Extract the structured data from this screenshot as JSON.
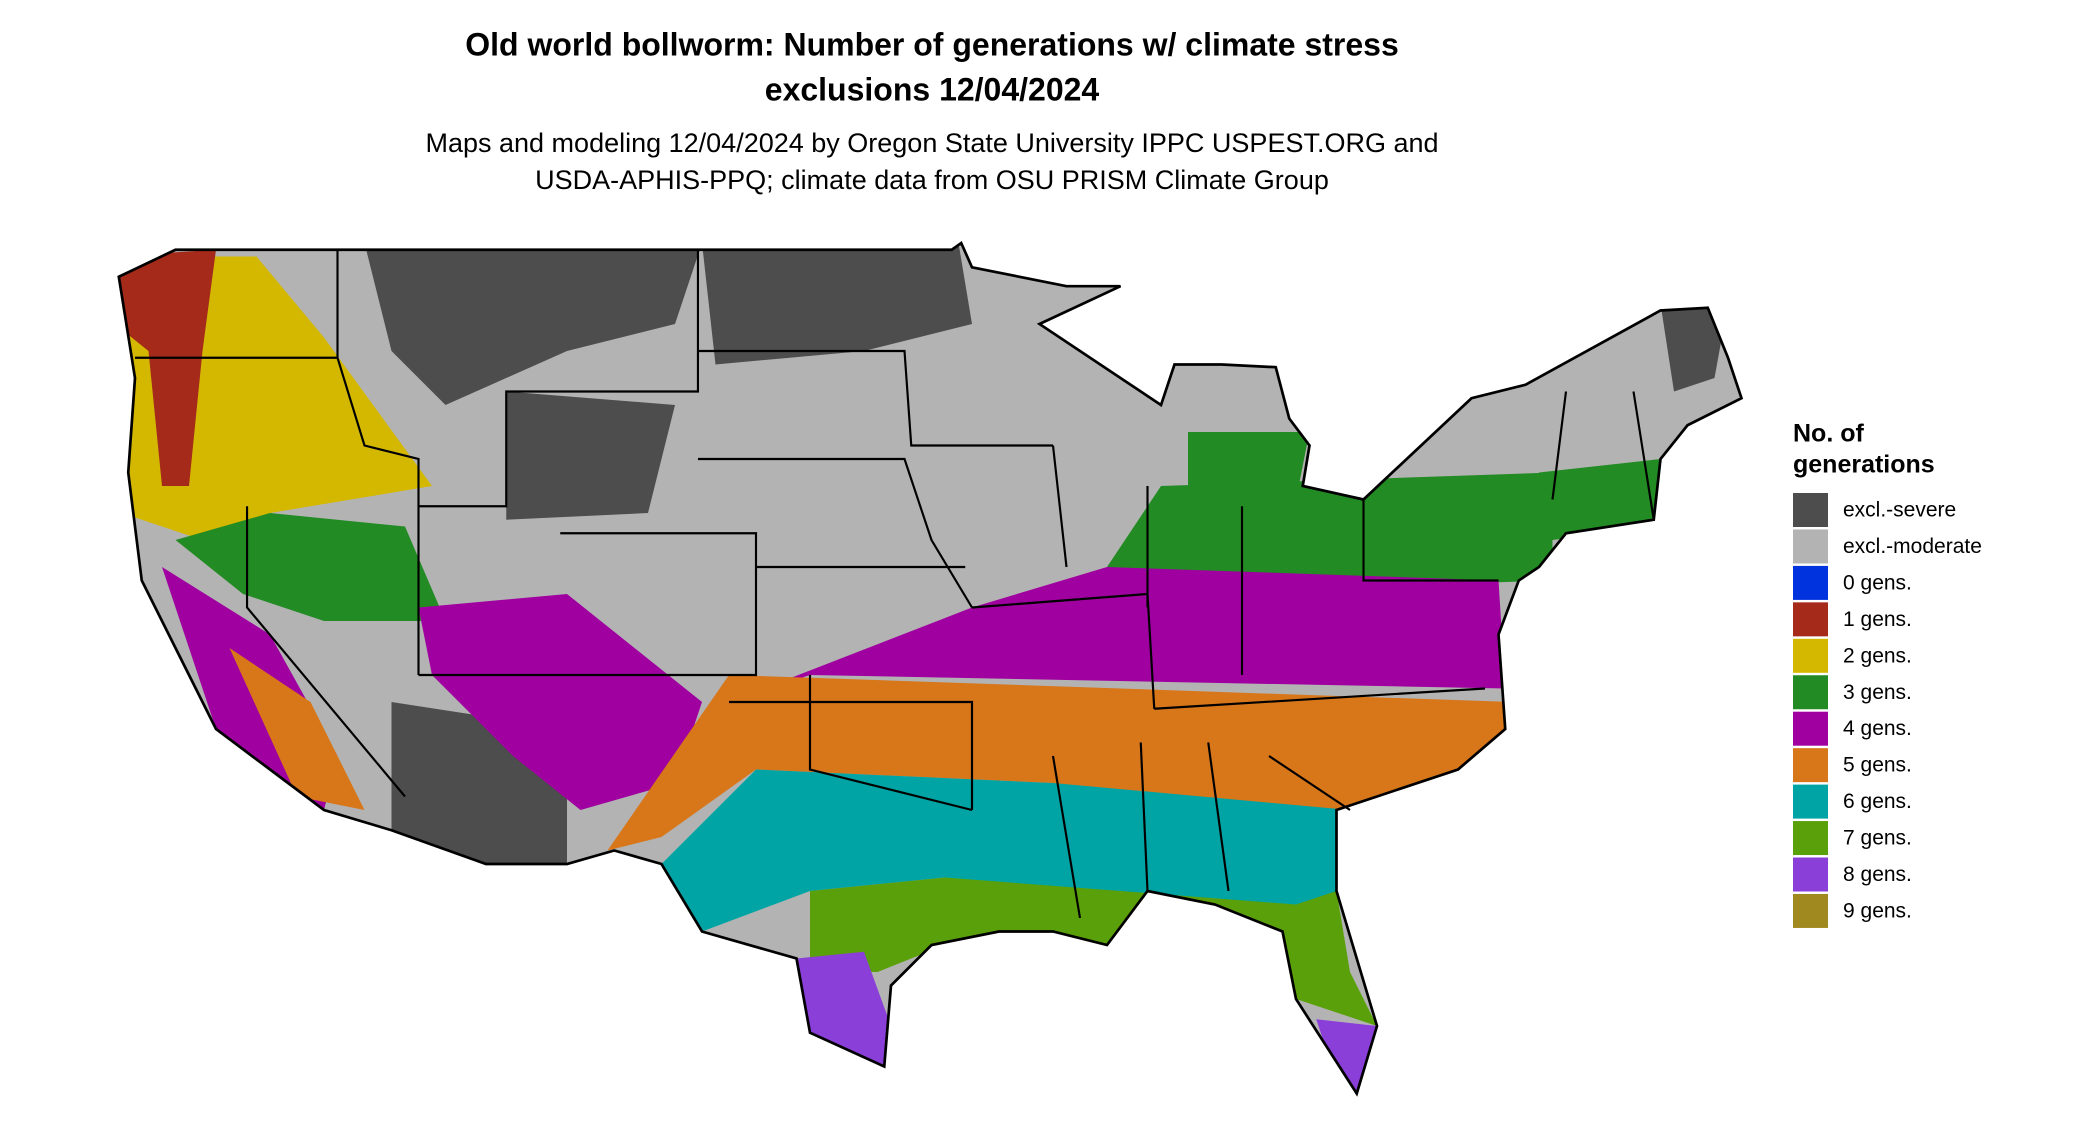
{
  "title": [
    "Old world bollworm: Number of generations w/ climate stress",
    "exclusions 12/04/2024"
  ],
  "subtitle": [
    "Maps and modeling 12/04/2024 by Oregon State University IPPC USPEST.ORG and",
    "USDA-APHIS-PPQ; climate data from OSU PRISM Climate Group"
  ],
  "legend": {
    "title": [
      "No. of",
      "generations"
    ],
    "items": [
      {
        "label": "excl.-severe",
        "color": "#4d4d4d"
      },
      {
        "label": "excl.-moderate",
        "color": "#b3b3b3"
      },
      {
        "label": "0 gens.",
        "color": "#0033dd"
      },
      {
        "label": "1 gens.",
        "color": "#a52a1a"
      },
      {
        "label": "2 gens.",
        "color": "#d4b800"
      },
      {
        "label": "3 gens.",
        "color": "#238b23"
      },
      {
        "label": "4 gens.",
        "color": "#a000a0"
      },
      {
        "label": "5 gens.",
        "color": "#d8761a"
      },
      {
        "label": "6 gens.",
        "color": "#00a4a4"
      },
      {
        "label": "7 gens.",
        "color": "#5aa00a"
      },
      {
        "label": "8 gens.",
        "color": "#8a3fd8"
      },
      {
        "label": "9 gens.",
        "color": "#a08a20"
      }
    ]
  }
}
